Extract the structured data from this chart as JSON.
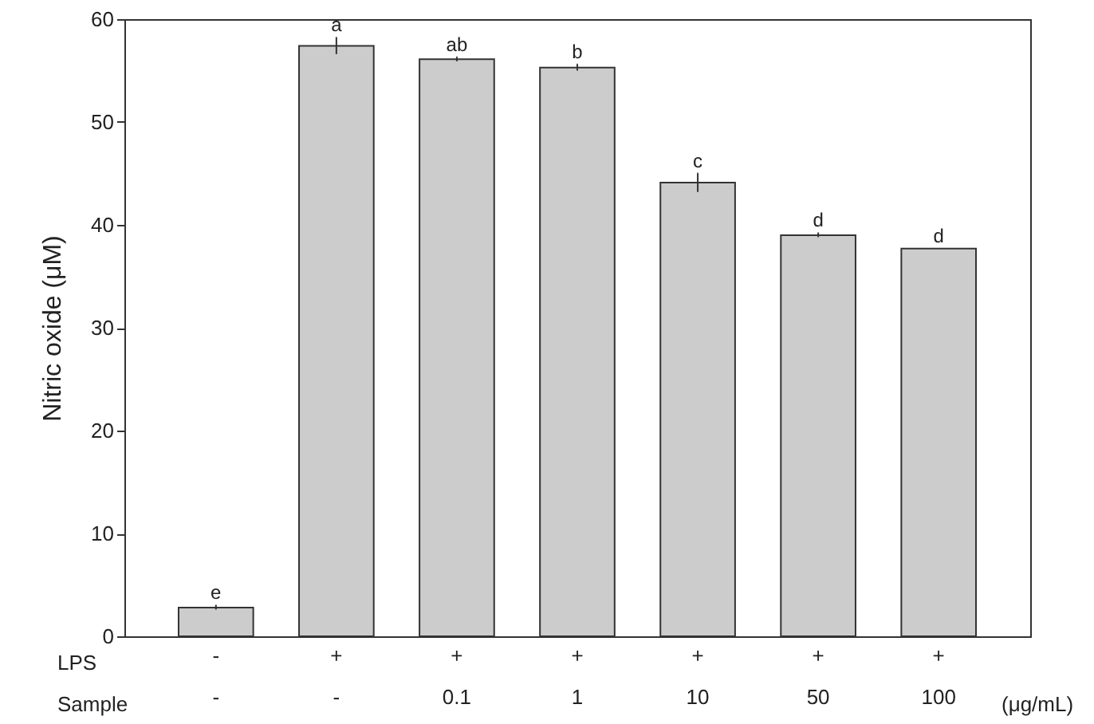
{
  "chart_data": {
    "type": "bar",
    "ylabel": "Nitric oxide (μM)",
    "categories": [
      "-\n-",
      "+\n-",
      "+\n0.1",
      "+\n1",
      "+\n10",
      "+\n50",
      "+\n100"
    ],
    "values": [
      2.8,
      57.4,
      56.1,
      55.3,
      44.1,
      39.0,
      37.7
    ],
    "errors": [
      0.2,
      0.8,
      0.2,
      0.3,
      0.9,
      0.2,
      null
    ],
    "color": "#cccccc",
    "ylim": [
      0,
      60
    ],
    "yticks": [
      0,
      10,
      20,
      30,
      40,
      50,
      60
    ],
    "grid": false,
    "annotations": [
      "LPS",
      "Sample",
      "(μg/mL)",
      {
        "text": "e",
        "x": "-\n-",
        "y": 3.0
      },
      {
        "text": "a",
        "x": "+\n-",
        "y": 58.2
      },
      {
        "text": "ab",
        "x": "+\n0.1",
        "y": 56.3
      },
      {
        "text": "b",
        "x": "+\n1",
        "y": 55.6
      },
      {
        "text": "c",
        "x": "+\n10",
        "y": 45.0
      },
      {
        "text": "d",
        "x": "+\n50",
        "y": 39.2
      },
      {
        "text": "d",
        "x": "+\n100",
        "y": 37.7
      }
    ]
  }
}
